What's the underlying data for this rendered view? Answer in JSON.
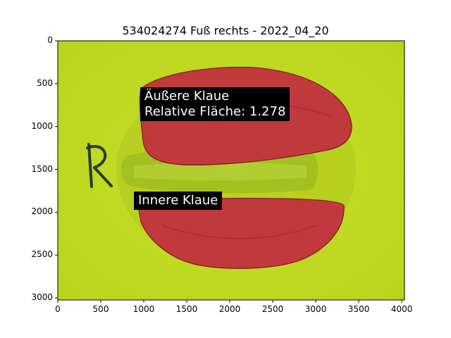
{
  "title": "534024274 Fuß rechts - 2022_04_20",
  "axes": {
    "x_ticks": [
      "0",
      "500",
      "1000",
      "1500",
      "2000",
      "2500",
      "3000",
      "3500",
      "4000"
    ],
    "y_ticks": [
      "0",
      "500",
      "1000",
      "1500",
      "2000",
      "2500",
      "3000"
    ],
    "x_range": [
      0,
      4032
    ],
    "y_range": [
      0,
      3024
    ]
  },
  "image_content": {
    "background_color": "#c4dd24",
    "highlight_color": "#c0393c",
    "handwritten_mark": "R"
  },
  "annotations": {
    "outer_claw": {
      "label": "Äußere Klaue",
      "relative_area_label": "Relative Fläche: 1.278"
    },
    "inner_claw": {
      "label": "Innere Klaue"
    }
  }
}
